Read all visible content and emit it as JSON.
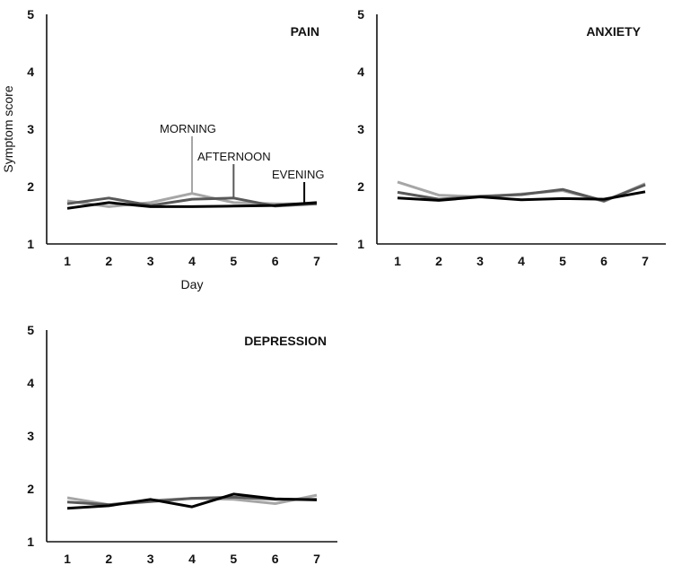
{
  "chart_data": [
    {
      "type": "line",
      "title": "PAIN",
      "xlabel": "Day",
      "ylabel": "Symptom score",
      "x": [
        1,
        2,
        3,
        4,
        5,
        6,
        7
      ],
      "ylim": [
        1,
        5
      ],
      "yticks": [
        1,
        2,
        3,
        4,
        5
      ],
      "grid": false,
      "series": [
        {
          "name": "MORNING",
          "color": "#a6a6a6",
          "values": [
            1.75,
            1.65,
            1.72,
            1.88,
            1.72,
            1.7,
            1.7
          ]
        },
        {
          "name": "AFTERNOON",
          "color": "#595959",
          "values": [
            1.7,
            1.8,
            1.67,
            1.78,
            1.8,
            1.66,
            1.7
          ]
        },
        {
          "name": "EVENING",
          "color": "#000000",
          "values": [
            1.62,
            1.72,
            1.65,
            1.65,
            1.66,
            1.67,
            1.72
          ]
        }
      ],
      "annotations": [
        {
          "text": "MORNING",
          "series": "MORNING",
          "x": 4
        },
        {
          "text": "AFTERNOON",
          "series": "AFTERNOON",
          "x": 5
        },
        {
          "text": "EVENING",
          "series": "EVENING",
          "x": 6.7
        }
      ]
    },
    {
      "type": "line",
      "title": "ANXIETY",
      "xlabel": "",
      "ylabel": "",
      "x": [
        1,
        2,
        3,
        4,
        5,
        6,
        7
      ],
      "ylim": [
        1,
        5
      ],
      "yticks": [
        1,
        2,
        3,
        4,
        5
      ],
      "grid": false,
      "series": [
        {
          "name": "MORNING",
          "color": "#a6a6a6",
          "values": [
            2.08,
            1.85,
            1.82,
            1.87,
            1.93,
            1.74,
            2.05
          ]
        },
        {
          "name": "AFTERNOON",
          "color": "#595959",
          "values": [
            1.9,
            1.78,
            1.83,
            1.86,
            1.95,
            1.75,
            2.03
          ]
        },
        {
          "name": "EVENING",
          "color": "#000000",
          "values": [
            1.8,
            1.76,
            1.82,
            1.77,
            1.79,
            1.78,
            1.91
          ]
        }
      ]
    },
    {
      "type": "line",
      "title": "DEPRESSION",
      "xlabel": "",
      "ylabel": "",
      "x": [
        1,
        2,
        3,
        4,
        5,
        6,
        7
      ],
      "ylim": [
        1,
        5
      ],
      "yticks": [
        1,
        2,
        3,
        4,
        5
      ],
      "grid": false,
      "series": [
        {
          "name": "MORNING",
          "color": "#a6a6a6",
          "values": [
            1.83,
            1.7,
            1.78,
            1.82,
            1.8,
            1.72,
            1.88
          ]
        },
        {
          "name": "AFTERNOON",
          "color": "#595959",
          "values": [
            1.75,
            1.7,
            1.76,
            1.82,
            1.84,
            1.8,
            1.8
          ]
        },
        {
          "name": "EVENING",
          "color": "#000000",
          "values": [
            1.63,
            1.68,
            1.8,
            1.66,
            1.9,
            1.81,
            1.79
          ]
        }
      ]
    }
  ]
}
